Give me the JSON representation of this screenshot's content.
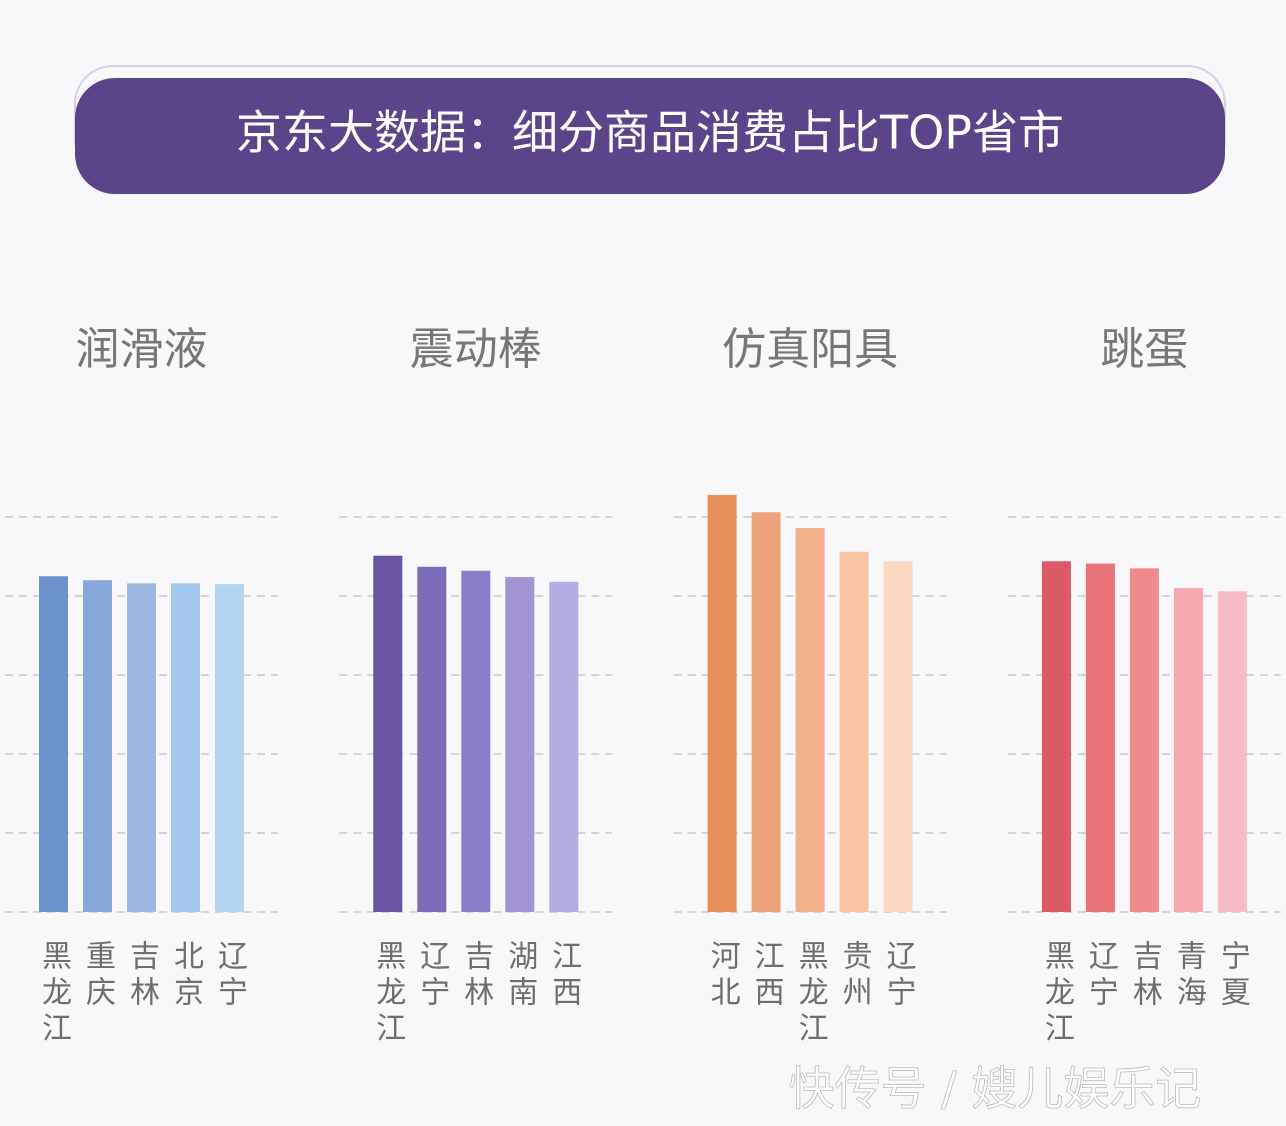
{
  "header": {
    "title": "京东大数据：细分商品消费占比TOP省市"
  },
  "watermark": "快传号 / 嫂儿娱乐记",
  "chart_data": [
    {
      "type": "bar",
      "title": "润滑液",
      "categories": [
        "黑龙江",
        "重庆",
        "吉林",
        "北京",
        "辽宁"
      ],
      "values": [
        4.25,
        4.2,
        4.16,
        4.16,
        4.15
      ],
      "colors": [
        "#6c93cc",
        "#86a8da",
        "#9bb8e2",
        "#a3c6ee",
        "#b3d4f2"
      ],
      "ylim": [
        0,
        5.5
      ],
      "yticks": [
        0,
        1,
        2,
        3,
        4,
        5
      ],
      "grid": true
    },
    {
      "type": "bar",
      "title": "震动棒",
      "categories": [
        "黑龙江",
        "辽宁",
        "吉林",
        "湖南",
        "江西"
      ],
      "values": [
        4.51,
        4.37,
        4.32,
        4.24,
        4.18
      ],
      "colors": [
        "#6a53a3",
        "#7c6cba",
        "#8b7dc6",
        "#a193d4",
        "#b0aee2"
      ],
      "ylim": [
        0,
        5.5
      ],
      "yticks": [
        0,
        1,
        2,
        3,
        4,
        5
      ],
      "grid": true
    },
    {
      "type": "bar",
      "title": "仿真阳具",
      "categories": [
        "河北",
        "江西",
        "黑龙江",
        "贵州",
        "辽宁"
      ],
      "values": [
        5.28,
        5.06,
        4.86,
        4.56,
        4.44
      ],
      "colors": [
        "#e8905a",
        "#eea37a",
        "#f2b08a",
        "#f9c4a4",
        "#fbd9c2"
      ],
      "ylim": [
        0,
        5.5
      ],
      "yticks": [
        0,
        1,
        2,
        3,
        4,
        5
      ],
      "grid": true
    },
    {
      "type": "bar",
      "title": "跳蛋",
      "categories": [
        "黑龙江",
        "辽宁",
        "吉林",
        "青海",
        "宁夏"
      ],
      "values": [
        4.44,
        4.41,
        4.35,
        4.1,
        4.06
      ],
      "colors": [
        "#dc5a66",
        "#e77478",
        "#ee8a8e",
        "#f5a8ae",
        "#f8bcc4"
      ],
      "ylim": [
        0,
        5.5
      ],
      "yticks": [
        0,
        1,
        2,
        3,
        4,
        5
      ],
      "grid": true
    }
  ]
}
